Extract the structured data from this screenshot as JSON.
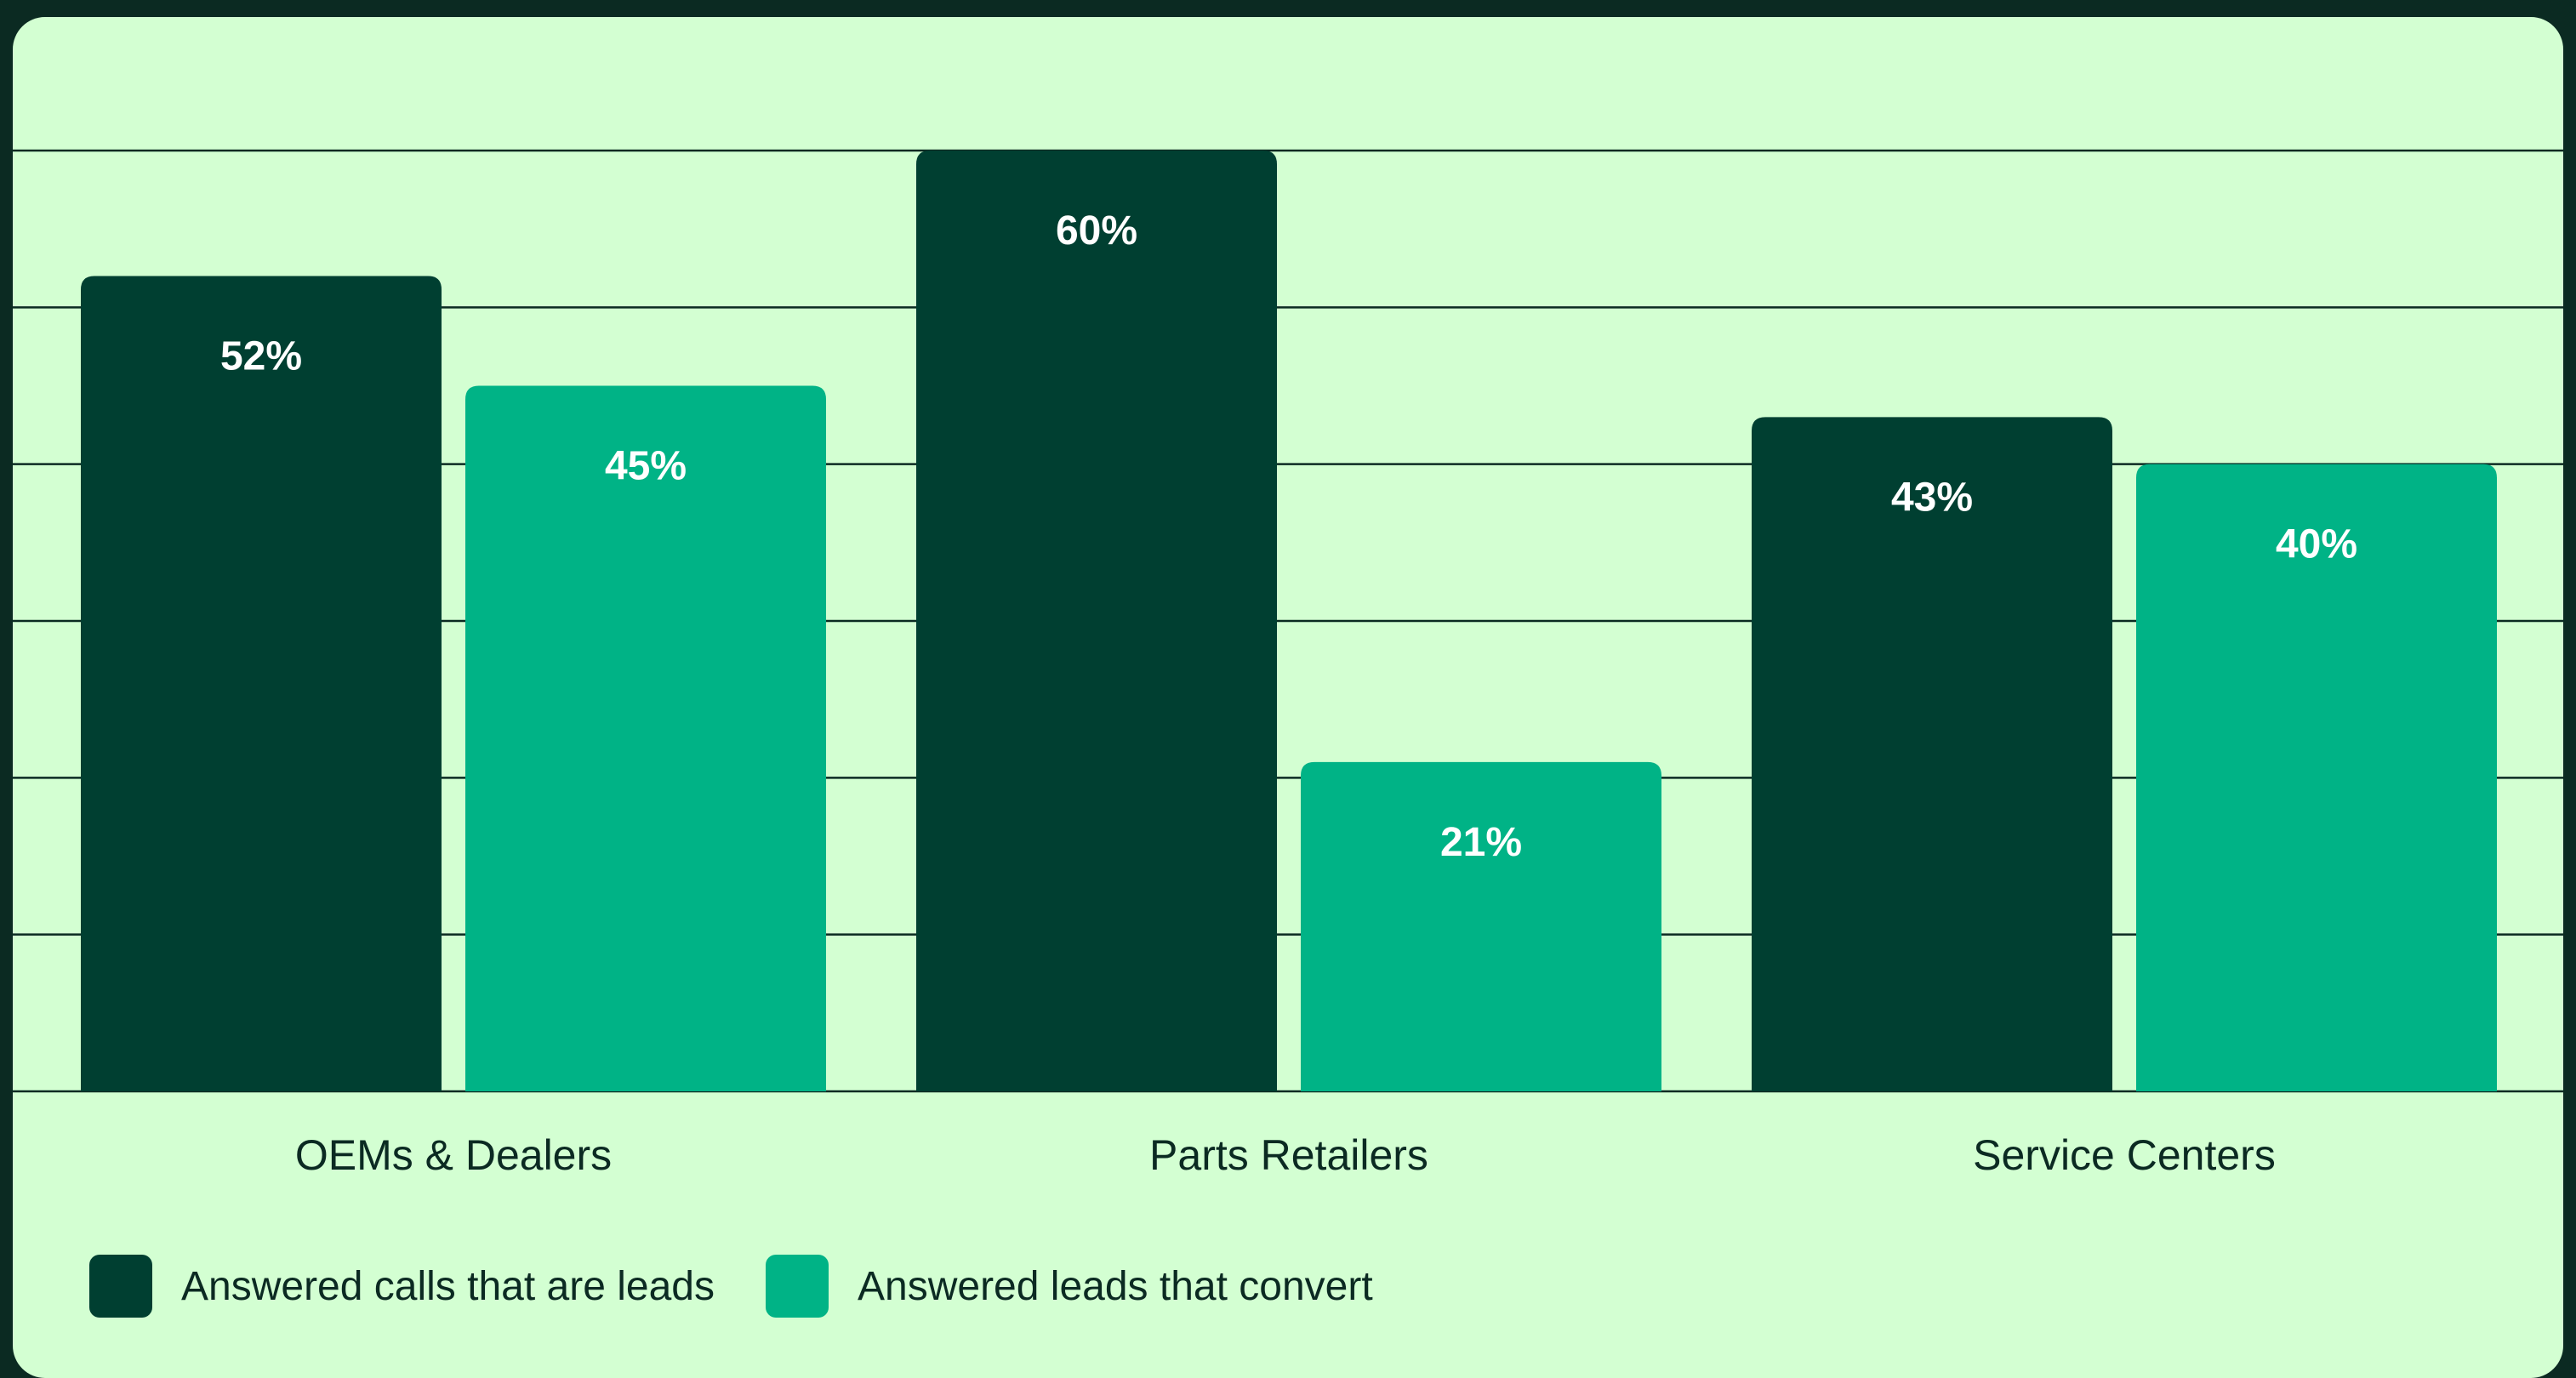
{
  "chart_data": {
    "type": "bar",
    "categories": [
      "OEMs & Dealers",
      "Parts Retailers",
      "Service Centers"
    ],
    "series": [
      {
        "name": "Answered calls that are leads",
        "values": [
          52,
          60,
          43
        ],
        "labels": [
          "52%",
          "60%",
          "43%"
        ],
        "color": "#003f31"
      },
      {
        "name": "Answered leads that convert",
        "values": [
          45,
          21,
          40
        ],
        "labels": [
          "45%",
          "21%",
          "40%"
        ],
        "color": "#00b386"
      }
    ],
    "ylim": [
      0,
      70
    ],
    "grid": true,
    "legend": "bottom-left",
    "unit": "%"
  },
  "colors": {
    "background": "#0b2a22",
    "card": "#d3ffd2",
    "gridline": "#0b2a22",
    "text": "#0b2a22",
    "bar_label": "#ffffff"
  }
}
